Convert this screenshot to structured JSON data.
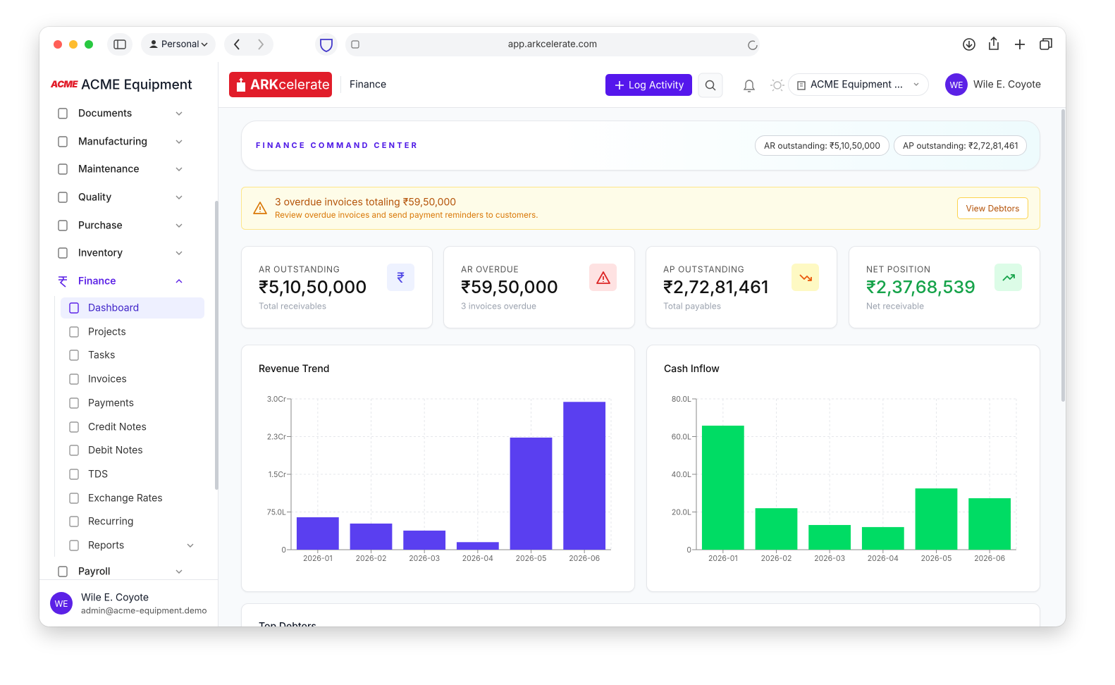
{
  "browser": {
    "profile": "Personal",
    "url": "app.arkcelerate.com"
  },
  "sidebar": {
    "logo": "ACME",
    "brand": "ACME Equipment",
    "nav_top": [
      "Documents",
      "Manufacturing",
      "Maintenance",
      "Quality",
      "Purchase",
      "Inventory"
    ],
    "open_section": "Finance",
    "open_items": [
      "Dashboard",
      "Projects",
      "Tasks",
      "Invoices",
      "Payments",
      "Credit Notes",
      "Debit Notes",
      "TDS",
      "Exchange Rates",
      "Recurring",
      "Reports"
    ],
    "nav_bottom": [
      "Payroll"
    ],
    "user": {
      "initials": "WE",
      "name": "Wile E. Coyote",
      "email": "admin@acme-equipment.demo"
    }
  },
  "header": {
    "logo_bold": "ARK",
    "logo_rest": "celerate",
    "section": "Finance",
    "action": "Log Activity",
    "org": "ACME Equipment ...",
    "user_initials": "WE",
    "user_name": "Wile E. Coyote"
  },
  "banner": {
    "title": "FINANCE COMMAND CENTER",
    "pills": [
      "AR outstanding: ₹5,10,50,000",
      "AP outstanding: ₹2,72,81,461"
    ]
  },
  "alert": {
    "title": "3 overdue invoices totaling ₹59,50,000",
    "text": "Review overdue invoices and send payment reminders to customers.",
    "button": "View Debtors"
  },
  "kpis": [
    {
      "label": "AR OUTSTANDING",
      "value": "₹5,10,50,000",
      "sub": "Total receivables",
      "symbol": "₹"
    },
    {
      "label": "AR OVERDUE",
      "value": "₹59,50,000",
      "sub": "3 invoices overdue"
    },
    {
      "label": "AP OUTSTANDING",
      "value": "₹2,72,81,461",
      "sub": "Total payables"
    },
    {
      "label": "NET POSITION",
      "value": "₹2,37,68,539",
      "sub": "Net receivable"
    }
  ],
  "chart_data": [
    {
      "type": "bar",
      "title": "Revenue Trend",
      "categories": [
        "2026-01",
        "2026-02",
        "2026-03",
        "2026-04",
        "2026-05",
        "2026-06"
      ],
      "values": [
        6450000,
        5200000,
        3800000,
        1500000,
        22300000,
        29400000
      ],
      "color": "#5a3ff0",
      "ylim": [
        0,
        30000000
      ],
      "yticks": [
        0,
        {
          "value": 7500000,
          "label": "75.0L"
        },
        {
          "value": 15000000,
          "label": "1.5Cr"
        },
        {
          "value": 22500000,
          "label": "2.3Cr"
        },
        {
          "value": 30000000,
          "label": "3.0Cr"
        }
      ],
      "grid": true
    },
    {
      "type": "bar",
      "title": "Cash Inflow",
      "categories": [
        "2026-01",
        "2026-02",
        "2026-03",
        "2026-04",
        "2026-05",
        "2026-06"
      ],
      "values": [
        6580000,
        2200000,
        1310000,
        1200000,
        3250000,
        2730000
      ],
      "color": "#00dc64",
      "ylim": [
        0,
        8000000
      ],
      "yticks": [
        0,
        {
          "value": 2000000,
          "label": "20.0L"
        },
        {
          "value": 4000000,
          "label": "40.0L"
        },
        {
          "value": 6000000,
          "label": "60.0L"
        },
        {
          "value": 8000000,
          "label": "80.0L"
        }
      ],
      "grid": true
    }
  ],
  "next_section": "Top Debtors"
}
